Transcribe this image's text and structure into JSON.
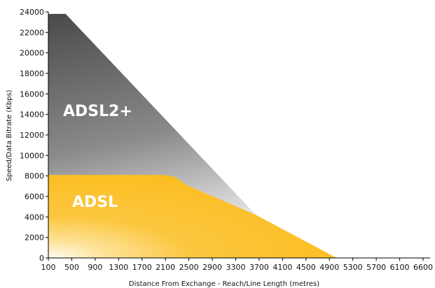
{
  "chart_data": {
    "type": "area",
    "xlabel": "Distance From Exchange - Reach/Line Length (metres)",
    "ylabel": "Speed/Data Bitrate (Kbps)",
    "xlim": [
      100,
      6600
    ],
    "ylim": [
      0,
      24000
    ],
    "x_ticks": [
      "100",
      "500",
      "900",
      "1300",
      "1700",
      "2100",
      "2500",
      "2900",
      "3300",
      "3700",
      "4100",
      "4500",
      "4900",
      "5300",
      "5700",
      "6100",
      "6600"
    ],
    "y_ticks": [
      "0",
      "2000",
      "4000",
      "6000",
      "8000",
      "10000",
      "12000",
      "14000",
      "16000",
      "18000",
      "20000",
      "22000",
      "24000"
    ],
    "grid": false,
    "legend": "none",
    "series": [
      {
        "name": "ADSL2+",
        "color": "#555555",
        "x": [
          100,
          400,
          3700,
          5100
        ],
        "y": [
          23800,
          23800,
          4200,
          0
        ]
      },
      {
        "name": "ADSL",
        "color": "#FBBD1E",
        "x": [
          100,
          2100,
          2300,
          2500,
          3700,
          5100
        ],
        "y": [
          8100,
          8100,
          7900,
          7100,
          4200,
          0
        ]
      }
    ]
  }
}
